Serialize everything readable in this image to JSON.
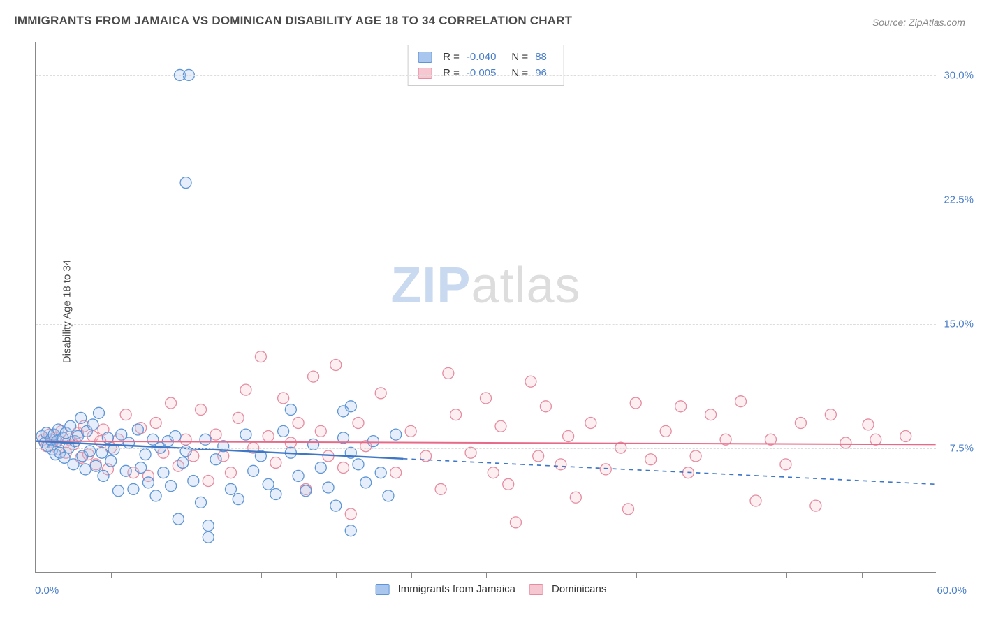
{
  "title": "IMMIGRANTS FROM JAMAICA VS DOMINICAN DISABILITY AGE 18 TO 34 CORRELATION CHART",
  "source": "Source: ZipAtlas.com",
  "ylabel": "Disability Age 18 to 34",
  "watermark": {
    "part1": "ZIP",
    "part2": "atlas"
  },
  "chart": {
    "type": "scatter",
    "xlim": [
      0,
      60
    ],
    "ylim": [
      0,
      32
    ],
    "x_tick_step": 5,
    "x_label_low": "0.0%",
    "x_label_high": "60.0%",
    "y_ticks": [
      7.5,
      15.0,
      22.5,
      30.0
    ],
    "y_tick_labels": [
      "7.5%",
      "15.0%",
      "22.5%",
      "30.0%"
    ],
    "grid_color": "#dddddd",
    "axis_color": "#888888",
    "background_color": "#ffffff",
    "marker_radius": 8,
    "marker_stroke_width": 1.3,
    "marker_fill_opacity": 0.3,
    "series": [
      {
        "name": "Immigrants from Jamaica",
        "stroke": "#5e95d6",
        "fill": "#a9c7ee",
        "R": "-0.040",
        "N": "88",
        "points": [
          [
            0.4,
            8.2
          ],
          [
            0.6,
            7.8
          ],
          [
            0.7,
            8.4
          ],
          [
            0.8,
            7.6
          ],
          [
            1.0,
            8.0
          ],
          [
            1.1,
            7.4
          ],
          [
            1.2,
            8.3
          ],
          [
            1.3,
            7.1
          ],
          [
            1.4,
            7.9
          ],
          [
            1.5,
            8.6
          ],
          [
            1.6,
            7.2
          ],
          [
            1.8,
            8.1
          ],
          [
            1.9,
            6.9
          ],
          [
            2.0,
            8.4
          ],
          [
            2.2,
            7.5
          ],
          [
            2.3,
            8.8
          ],
          [
            2.5,
            6.5
          ],
          [
            2.6,
            7.9
          ],
          [
            2.8,
            8.2
          ],
          [
            3.0,
            9.3
          ],
          [
            3.1,
            7.0
          ],
          [
            3.3,
            6.2
          ],
          [
            3.4,
            8.5
          ],
          [
            3.6,
            7.3
          ],
          [
            3.8,
            8.9
          ],
          [
            4.0,
            6.4
          ],
          [
            4.2,
            9.6
          ],
          [
            4.4,
            7.2
          ],
          [
            4.5,
            5.8
          ],
          [
            4.8,
            8.1
          ],
          [
            5.0,
            6.7
          ],
          [
            5.2,
            7.4
          ],
          [
            5.5,
            4.9
          ],
          [
            5.7,
            8.3
          ],
          [
            6.0,
            6.1
          ],
          [
            6.2,
            7.8
          ],
          [
            6.5,
            5.0
          ],
          [
            6.8,
            8.6
          ],
          [
            7.0,
            6.3
          ],
          [
            7.3,
            7.1
          ],
          [
            7.5,
            5.4
          ],
          [
            7.8,
            8.0
          ],
          [
            8.0,
            4.6
          ],
          [
            8.3,
            7.5
          ],
          [
            8.5,
            6.0
          ],
          [
            8.8,
            7.9
          ],
          [
            9.0,
            5.2
          ],
          [
            9.3,
            8.2
          ],
          [
            9.5,
            3.2
          ],
          [
            9.8,
            6.6
          ],
          [
            10.0,
            7.3
          ],
          [
            10.5,
            5.5
          ],
          [
            11.0,
            4.2
          ],
          [
            11.3,
            8.0
          ],
          [
            11.5,
            2.8
          ],
          [
            11.5,
            2.1
          ],
          [
            12.0,
            6.8
          ],
          [
            12.5,
            7.6
          ],
          [
            13.0,
            5.0
          ],
          [
            13.5,
            4.4
          ],
          [
            14.0,
            8.3
          ],
          [
            14.5,
            6.1
          ],
          [
            15.0,
            7.0
          ],
          [
            15.5,
            5.3
          ],
          [
            16.0,
            4.7
          ],
          [
            16.5,
            8.5
          ],
          [
            17.0,
            7.2
          ],
          [
            17.5,
            5.8
          ],
          [
            18.0,
            4.9
          ],
          [
            18.5,
            7.7
          ],
          [
            19.0,
            6.3
          ],
          [
            19.5,
            5.1
          ],
          [
            20.0,
            4.0
          ],
          [
            20.5,
            8.1
          ],
          [
            21.0,
            10.0
          ],
          [
            21.0,
            7.2
          ],
          [
            21.0,
            2.5
          ],
          [
            21.5,
            6.5
          ],
          [
            22.0,
            5.4
          ],
          [
            22.5,
            7.9
          ],
          [
            23.0,
            6.0
          ],
          [
            23.5,
            4.6
          ],
          [
            24.0,
            8.3
          ],
          [
            9.6,
            30.0
          ],
          [
            10.2,
            30.0
          ],
          [
            10.0,
            23.5
          ],
          [
            17.0,
            9.8
          ],
          [
            20.5,
            9.7
          ]
        ],
        "trend": {
          "x1": 0,
          "y1": 7.9,
          "x2": 60,
          "y2": 5.3,
          "solid_until_x": 24.5,
          "color": "#3f77c7",
          "width": 2.4
        }
      },
      {
        "name": "Dominicans",
        "stroke": "#e58ca0",
        "fill": "#f6c6d1",
        "R": "-0.005",
        "N": "96",
        "points": [
          [
            0.5,
            8.0
          ],
          [
            0.7,
            7.6
          ],
          [
            0.9,
            8.3
          ],
          [
            1.1,
            7.8
          ],
          [
            1.3,
            8.1
          ],
          [
            1.5,
            7.4
          ],
          [
            1.7,
            8.5
          ],
          [
            2.0,
            7.2
          ],
          [
            2.2,
            8.0
          ],
          [
            2.5,
            7.7
          ],
          [
            2.8,
            8.4
          ],
          [
            3.0,
            6.9
          ],
          [
            3.2,
            8.8
          ],
          [
            3.5,
            7.1
          ],
          [
            3.8,
            8.2
          ],
          [
            4.0,
            6.5
          ],
          [
            4.3,
            7.9
          ],
          [
            4.5,
            8.6
          ],
          [
            4.8,
            6.2
          ],
          [
            5.0,
            7.5
          ],
          [
            5.5,
            8.0
          ],
          [
            6.0,
            9.5
          ],
          [
            6.5,
            6.0
          ],
          [
            7.0,
            8.7
          ],
          [
            7.5,
            5.8
          ],
          [
            8.0,
            9.0
          ],
          [
            8.5,
            7.2
          ],
          [
            9.0,
            10.2
          ],
          [
            9.5,
            6.4
          ],
          [
            10.0,
            8.0
          ],
          [
            10.5,
            7.0
          ],
          [
            11.0,
            9.8
          ],
          [
            11.5,
            5.5
          ],
          [
            12.0,
            8.3
          ],
          [
            12.5,
            7.0
          ],
          [
            13.0,
            6.0
          ],
          [
            13.5,
            9.3
          ],
          [
            14.0,
            11.0
          ],
          [
            14.5,
            7.5
          ],
          [
            15.0,
            13.0
          ],
          [
            15.5,
            8.2
          ],
          [
            16.0,
            6.6
          ],
          [
            16.5,
            10.5
          ],
          [
            17.0,
            7.8
          ],
          [
            17.5,
            9.0
          ],
          [
            18.0,
            5.0
          ],
          [
            18.5,
            11.8
          ],
          [
            19.0,
            8.5
          ],
          [
            19.5,
            7.0
          ],
          [
            20.0,
            12.5
          ],
          [
            20.5,
            6.3
          ],
          [
            21.0,
            3.5
          ],
          [
            21.5,
            9.0
          ],
          [
            22.0,
            7.6
          ],
          [
            23.0,
            10.8
          ],
          [
            24.0,
            6.0
          ],
          [
            25.0,
            8.5
          ],
          [
            26.0,
            7.0
          ],
          [
            27.0,
            5.0
          ],
          [
            27.5,
            12.0
          ],
          [
            28.0,
            9.5
          ],
          [
            29.0,
            7.2
          ],
          [
            30.0,
            10.5
          ],
          [
            30.5,
            6.0
          ],
          [
            31.0,
            8.8
          ],
          [
            31.5,
            5.3
          ],
          [
            32.0,
            3.0
          ],
          [
            33.0,
            11.5
          ],
          [
            33.5,
            7.0
          ],
          [
            34.0,
            10.0
          ],
          [
            35.0,
            6.5
          ],
          [
            35.5,
            8.2
          ],
          [
            36.0,
            4.5
          ],
          [
            37.0,
            9.0
          ],
          [
            38.0,
            6.2
          ],
          [
            39.0,
            7.5
          ],
          [
            39.5,
            3.8
          ],
          [
            40.0,
            10.2
          ],
          [
            41.0,
            6.8
          ],
          [
            42.0,
            8.5
          ],
          [
            43.0,
            10.0
          ],
          [
            43.5,
            6.0
          ],
          [
            44.0,
            7.0
          ],
          [
            45.0,
            9.5
          ],
          [
            46.0,
            8.0
          ],
          [
            47.0,
            10.3
          ],
          [
            48.0,
            4.3
          ],
          [
            49.0,
            8.0
          ],
          [
            50.0,
            6.5
          ],
          [
            51.0,
            9.0
          ],
          [
            52.0,
            4.0
          ],
          [
            53.0,
            9.5
          ],
          [
            54.0,
            7.8
          ],
          [
            55.5,
            8.9
          ],
          [
            56.0,
            8.0
          ],
          [
            58.0,
            8.2
          ]
        ],
        "trend": {
          "x1": 0,
          "y1": 7.9,
          "x2": 60,
          "y2": 7.7,
          "solid_until_x": 60,
          "color": "#e76b88",
          "width": 2.0
        }
      }
    ]
  },
  "legend_bottom": [
    {
      "label": "Immigrants from Jamaica",
      "stroke": "#5e95d6",
      "fill": "#a9c7ee"
    },
    {
      "label": "Dominicans",
      "stroke": "#e58ca0",
      "fill": "#f6c6d1"
    }
  ]
}
